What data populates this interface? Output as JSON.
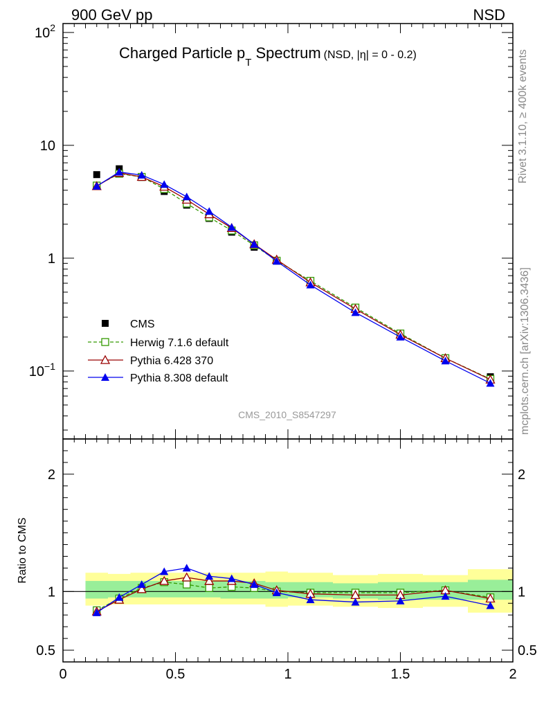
{
  "header": {
    "left": "900 GeV pp",
    "right": "NSD"
  },
  "side_texts": {
    "rivet": "Rivet 3.1.10, ≥ 400k events",
    "mcplots": "mcplots.cern.ch [arXiv:1306.3436]"
  },
  "title": {
    "main": "Charged Particle p",
    "sub": "T",
    "main2": " Spectrum",
    "tag": "(NSD, |η| =    0 - 0.2)"
  },
  "analysis_id": "CMS_2010_S8547297",
  "ratio_ylabel": "Ratio to CMS",
  "colors": {
    "herwig": "#339900",
    "pythia6": "#990000",
    "pythia8": "#0000ee",
    "band_inner": "#99ee99",
    "band_outer": "#ffff99"
  },
  "chart_data": [
    {
      "type": "line",
      "yscale": "log",
      "xlim": [
        0,
        2
      ],
      "ylim": [
        0.025,
        120
      ],
      "ytick_labels": [
        {
          "base": "10",
          "exp": "2"
        },
        {
          "base": "10",
          "exp": ""
        },
        {
          "base": "1",
          "exp": ""
        },
        {
          "base": "10",
          "exp": "−1"
        }
      ],
      "x": [
        0.15,
        0.25,
        0.35,
        0.45,
        0.55,
        0.65,
        0.75,
        0.85,
        0.95,
        1.1,
        1.3,
        1.5,
        1.7,
        1.9
      ],
      "series": [
        {
          "name": "CMS",
          "marker": "square",
          "values": [
            5.5,
            6.2,
            5.2,
            3.9,
            2.95,
            2.25,
            1.7,
            1.25,
            0.95,
            0.62,
            0.36,
            0.215,
            0.128,
            0.089
          ]
        },
        {
          "name": "Herwig 7.1.6 default",
          "marker": "open-square",
          "dashed": true,
          "values": [
            4.4,
            5.6,
            5.25,
            4.1,
            3.05,
            2.3,
            1.76,
            1.3,
            0.95,
            0.63,
            0.365,
            0.215,
            0.13,
            0.085
          ]
        },
        {
          "name": "Pythia 6.428 370",
          "marker": "open-triangle",
          "values": [
            4.35,
            5.7,
            5.25,
            4.3,
            3.3,
            2.45,
            1.85,
            1.33,
            0.97,
            0.61,
            0.355,
            0.21,
            0.13,
            0.084
          ]
        },
        {
          "name": "Pythia 8.308 default",
          "marker": "triangle",
          "values": [
            4.35,
            5.8,
            5.45,
            4.5,
            3.5,
            2.6,
            1.88,
            1.33,
            0.94,
            0.58,
            0.33,
            0.2,
            0.123,
            0.078
          ]
        }
      ]
    },
    {
      "type": "line",
      "xlim": [
        0,
        2
      ],
      "ylim": [
        0.4,
        2.3
      ],
      "ytick_labels": [
        "2",
        "1",
        "0.5"
      ],
      "xtick_labels": [
        "0",
        "0.5",
        "1",
        "1.5",
        "2"
      ],
      "band_edges": [
        0.1,
        0.2,
        0.3,
        0.4,
        0.5,
        0.6,
        0.7,
        0.8,
        0.9,
        1.0,
        1.2,
        1.4,
        1.6,
        1.8,
        2.0
      ],
      "band_inner": [
        [
          0.94,
          1.09
        ],
        [
          0.95,
          1.09
        ],
        [
          0.95,
          1.09
        ],
        [
          0.95,
          1.09
        ],
        [
          0.95,
          1.09
        ],
        [
          0.95,
          1.09
        ],
        [
          0.94,
          1.09
        ],
        [
          0.94,
          1.09
        ],
        [
          0.94,
          1.08
        ],
        [
          0.95,
          1.08
        ],
        [
          0.94,
          1.07
        ],
        [
          0.93,
          1.08
        ],
        [
          0.93,
          1.08
        ],
        [
          0.93,
          1.1
        ]
      ],
      "band_outer": [
        [
          0.88,
          1.16
        ],
        [
          0.89,
          1.15
        ],
        [
          0.89,
          1.16
        ],
        [
          0.89,
          1.16
        ],
        [
          0.89,
          1.16
        ],
        [
          0.89,
          1.16
        ],
        [
          0.89,
          1.16
        ],
        [
          0.89,
          1.16
        ],
        [
          0.87,
          1.17
        ],
        [
          0.88,
          1.16
        ],
        [
          0.87,
          1.14
        ],
        [
          0.86,
          1.15
        ],
        [
          0.87,
          1.14
        ],
        [
          0.82,
          1.19
        ]
      ],
      "x": [
        0.15,
        0.25,
        0.35,
        0.45,
        0.55,
        0.65,
        0.75,
        0.85,
        0.95,
        1.1,
        1.3,
        1.5,
        1.7,
        1.9
      ],
      "series": [
        {
          "name": "Herwig 7.1.6 default",
          "marker": "open-square",
          "dashed": true,
          "values": [
            0.84,
            0.94,
            1.03,
            1.08,
            1.06,
            1.03,
            1.04,
            1.03,
            1.0,
            0.99,
            0.99,
            0.99,
            1.01,
            0.95
          ]
        },
        {
          "name": "Pythia 6.428 370",
          "marker": "open-triangle",
          "values": [
            0.83,
            0.93,
            1.02,
            1.09,
            1.12,
            1.09,
            1.09,
            1.07,
            1.01,
            0.98,
            0.97,
            0.97,
            1.01,
            0.94
          ]
        },
        {
          "name": "Pythia 8.308 default",
          "marker": "triangle",
          "values": [
            0.82,
            0.95,
            1.06,
            1.17,
            1.2,
            1.13,
            1.11,
            1.06,
            0.99,
            0.93,
            0.91,
            0.92,
            0.96,
            0.88
          ]
        }
      ]
    }
  ]
}
